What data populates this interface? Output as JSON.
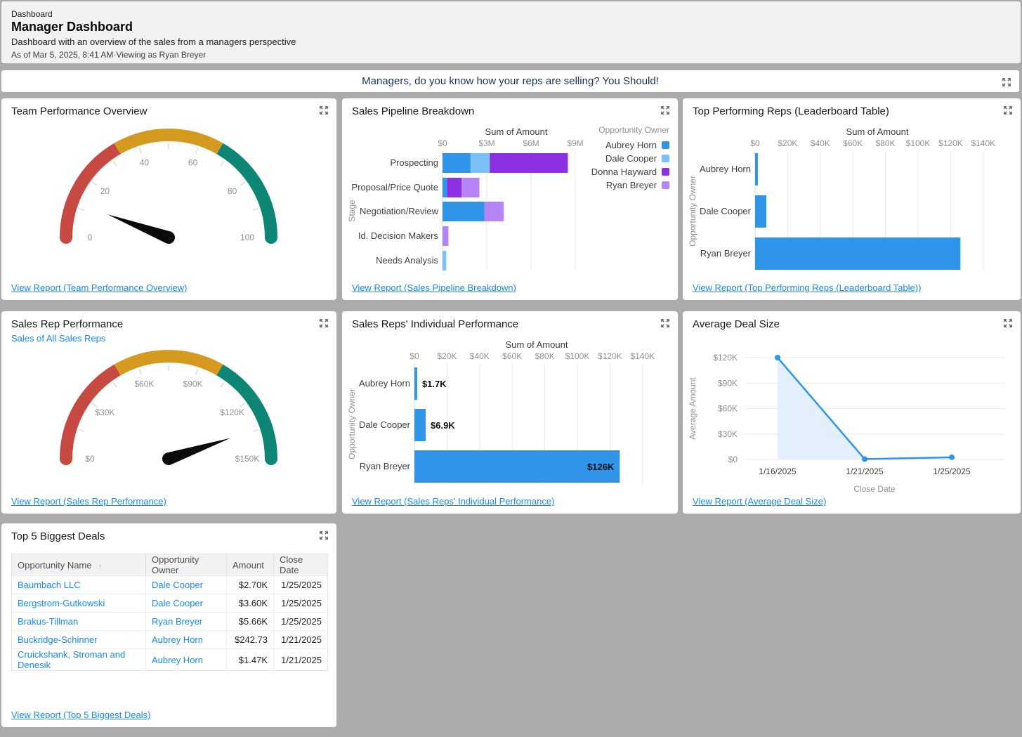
{
  "colors": {
    "page_bg": "#ababab",
    "card_bg": "#ffffff",
    "link": "#1589ee",
    "banner_text": "#16325c",
    "bar_blue": "#3095e8",
    "gauge_red": "#c64a41",
    "gauge_orange": "#d4991f",
    "gauge_teal": "#0d8675"
  },
  "header": {
    "breadcrumb": "Dashboard",
    "title": "Manager Dashboard",
    "subtitle": "Dashboard with an overview of the sales from a managers perspective",
    "as_of": "As of Mar 5, 2025, 8:41 AM·Viewing as Ryan Breyer"
  },
  "banner": {
    "text": "Managers, do you know how your reps are selling? You Should!"
  },
  "cards": [
    {
      "title": "Team Performance Overview",
      "view_report": "View Report (Team Performance Overview)"
    },
    {
      "title": "Sales Pipeline Breakdown",
      "view_report": "View Report (Sales Pipeline Breakdown)"
    },
    {
      "title": "Top Performing Reps (Leaderboard Table)",
      "view_report": "View Report (Top Performing Reps (Leaderboard Table))"
    },
    {
      "title": "Sales Rep Performance",
      "subtitle_link": "Sales of All Sales Reps",
      "view_report": "View Report (Sales Rep Performance)"
    },
    {
      "title": "Sales Reps' Individual Performance",
      "view_report": "View Report (Sales Reps' Individual Performance)"
    },
    {
      "title": "Average Deal Size",
      "view_report": "View Report (Average Deal Size)"
    },
    {
      "title": "Top 5 Biggest Deals",
      "view_report": "View Report (Top 5 Biggest Deals)"
    }
  ],
  "chart_data": [
    {
      "id": "team-performance-gauge",
      "type": "gauge",
      "title": "Team Performance Overview",
      "min": 0,
      "max": 100,
      "value": 11.5,
      "ticks": [
        {
          "v": 0,
          "label": "0"
        },
        {
          "v": 20,
          "label": "20"
        },
        {
          "v": 40,
          "label": "40"
        },
        {
          "v": 60,
          "label": "60"
        },
        {
          "v": 80,
          "label": "80"
        },
        {
          "v": 100,
          "label": "100"
        }
      ],
      "segments": [
        {
          "from": 0,
          "to": 33.3,
          "color": "#c64a41"
        },
        {
          "from": 33.3,
          "to": 66.7,
          "color": "#d4991f"
        },
        {
          "from": 66.7,
          "to": 100,
          "color": "#0d8675"
        }
      ]
    },
    {
      "id": "sales-pipeline-breakdown",
      "type": "bar",
      "orientation": "horizontal",
      "stacked": true,
      "axis_title": "Sum of Amount",
      "ylabel": "Stage",
      "legend_title": "Opportunity Owner",
      "legend_position": "right",
      "grid": true,
      "categories": [
        "Prospecting",
        "Proposal/Price Quote",
        "Negotiation/Review",
        "Id. Decision Makers",
        "Needs Analysis"
      ],
      "series": [
        {
          "name": "Aubrey Horn",
          "color": "#3095e8",
          "values": [
            1900000,
            300000,
            2850000,
            0,
            0
          ]
        },
        {
          "name": "Dale Cooper",
          "color": "#7cc0f8",
          "values": [
            1300000,
            0,
            0,
            0,
            250000
          ]
        },
        {
          "name": "Donna Hayward",
          "color": "#8b30e3",
          "values": [
            5300000,
            1000000,
            0,
            0,
            0
          ]
        },
        {
          "name": "Ryan Breyer",
          "color": "#b685f5",
          "values": [
            0,
            1200000,
            1300000,
            400000,
            0
          ]
        }
      ],
      "x_ticks": [
        {
          "v": 0,
          "label": "$0"
        },
        {
          "v": 3000000,
          "label": "$3M"
        },
        {
          "v": 6000000,
          "label": "$6M"
        },
        {
          "v": 9000000,
          "label": "$9M"
        }
      ],
      "xmax": 10000000
    },
    {
      "id": "top-performing-reps",
      "type": "bar",
      "orientation": "horizontal",
      "axis_title": "Sum of Amount",
      "ylabel": "Opportunity Owner",
      "grid": true,
      "categories": [
        "Aubrey Horn",
        "Dale Cooper",
        "Ryan Breyer"
      ],
      "values": [
        1700,
        6900,
        126000
      ],
      "bar_color": "#3095e8",
      "x_ticks": [
        {
          "v": 0,
          "label": "$0"
        },
        {
          "v": 20000,
          "label": "$20K"
        },
        {
          "v": 40000,
          "label": "$40K"
        },
        {
          "v": 60000,
          "label": "$60K"
        },
        {
          "v": 80000,
          "label": "$80K"
        },
        {
          "v": 100000,
          "label": "$100K"
        },
        {
          "v": 120000,
          "label": "$120K"
        },
        {
          "v": 140000,
          "label": "$140K"
        }
      ],
      "xmax": 150000
    },
    {
      "id": "sales-rep-performance-gauge",
      "type": "gauge",
      "title": "Sales Rep Performance",
      "min": 0,
      "max": 150000,
      "value": 134600,
      "ticks": [
        {
          "v": 0,
          "label": "$0"
        },
        {
          "v": 30000,
          "label": "$30K"
        },
        {
          "v": 60000,
          "label": "$60K"
        },
        {
          "v": 90000,
          "label": "$90K"
        },
        {
          "v": 120000,
          "label": "$120K"
        },
        {
          "v": 150000,
          "label": "$150K"
        }
      ],
      "segments": [
        {
          "from": 0,
          "to": 50000,
          "color": "#c64a41"
        },
        {
          "from": 50000,
          "to": 100000,
          "color": "#d4991f"
        },
        {
          "from": 100000,
          "to": 150000,
          "color": "#0d8675"
        }
      ]
    },
    {
      "id": "sales-reps-individual-performance",
      "type": "bar",
      "orientation": "horizontal",
      "axis_title": "Sum of Amount",
      "ylabel": "Opportunity Owner",
      "grid": true,
      "categories": [
        "Aubrey Horn",
        "Dale Cooper",
        "Ryan Breyer"
      ],
      "values": [
        1700,
        6900,
        126000
      ],
      "value_labels": [
        "$1.7K",
        "$6.9K",
        "$126K"
      ],
      "bar_color": "#3095e8",
      "x_ticks": [
        {
          "v": 0,
          "label": "$0"
        },
        {
          "v": 20000,
          "label": "$20K"
        },
        {
          "v": 40000,
          "label": "$40K"
        },
        {
          "v": 60000,
          "label": "$60K"
        },
        {
          "v": 80000,
          "label": "$80K"
        },
        {
          "v": 100000,
          "label": "$100K"
        },
        {
          "v": 120000,
          "label": "$120K"
        },
        {
          "v": 140000,
          "label": "$140K"
        }
      ],
      "xmax": 150000
    },
    {
      "id": "average-deal-size",
      "type": "line",
      "area": true,
      "xlabel": "Close Date",
      "ylabel": "Average Amount",
      "grid": true,
      "x": [
        "1/16/2025",
        "1/21/2025",
        "1/25/2025"
      ],
      "values": [
        120000,
        500,
        2600
      ],
      "y_ticks": [
        {
          "v": 0,
          "label": "$0"
        },
        {
          "v": 30000,
          "label": "$30K"
        },
        {
          "v": 60000,
          "label": "$60K"
        },
        {
          "v": 90000,
          "label": "$90K"
        },
        {
          "v": 120000,
          "label": "$120K"
        }
      ],
      "ymax": 130000,
      "line_color": "#2e95e8",
      "fill_color": "#e3f0fc"
    }
  ],
  "table": {
    "columns": [
      "Opportunity Name",
      "Opportunity Owner",
      "Amount",
      "Close Date"
    ],
    "sort_column": "Opportunity Name",
    "sort_indicator": "↑",
    "rows": [
      {
        "name": "Baumbach LLC",
        "owner": "Dale Cooper",
        "amount": "$2.70K",
        "close_date": "1/25/2025"
      },
      {
        "name": "Bergstrom-Gutkowski",
        "owner": "Dale Cooper",
        "amount": "$3.60K",
        "close_date": "1/25/2025"
      },
      {
        "name": "Brakus-Tillman",
        "owner": "Ryan Breyer",
        "amount": "$5.66K",
        "close_date": "1/25/2025"
      },
      {
        "name": "Buckridge-Schinner",
        "owner": "Aubrey Horn",
        "amount": "$242.73",
        "close_date": "1/21/2025"
      },
      {
        "name": "Cruickshank, Stroman and Denesik",
        "owner": "Aubrey Horn",
        "amount": "$1.47K",
        "close_date": "1/21/2025"
      }
    ]
  }
}
